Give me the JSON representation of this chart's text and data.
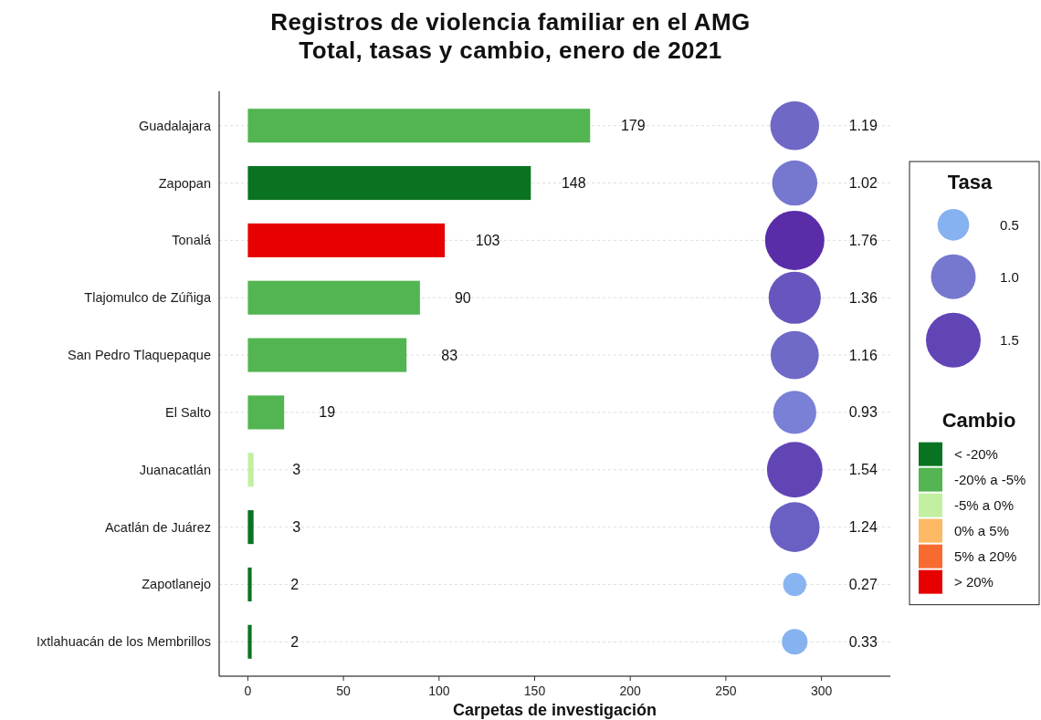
{
  "chart_data": {
    "type": "bar",
    "title": "Registros de violencia familiar en el AMG\nTotal, tasas y cambio, enero de 2021",
    "xlabel": "Carpetas de investigación",
    "orientation": "horizontal",
    "stacked": true,
    "categories": [
      "Guadalajara",
      "Zapopan",
      "Tonalá",
      "Tlajomulco de Zúñiga",
      "San Pedro Tlaquepaque",
      "El Salto",
      "Juanacatlán",
      "Acatlán de Juárez",
      "Zapotlanejo",
      "Ixtlahuacán de los Membrillos"
    ],
    "series": [
      {
        "name": "< -20%",
        "color": "#0a7321",
        "values": [
          null,
          148,
          null,
          null,
          null,
          null,
          null,
          3,
          2,
          2
        ],
        "value_labels": [
          null,
          "148",
          null,
          null,
          null,
          null,
          null,
          "3",
          "2",
          "2"
        ]
      },
      {
        "name": "-20% a -5%",
        "color": "#52b552",
        "values": [
          179,
          null,
          null,
          90,
          83,
          19,
          null,
          null,
          null,
          null
        ],
        "value_labels": [
          "179",
          null,
          null,
          "90",
          "83",
          "19",
          null,
          null,
          null,
          null
        ]
      },
      {
        "name": "-5% a 0%",
        "color": "#c2f0a0",
        "values": [
          null,
          null,
          null,
          null,
          null,
          null,
          3,
          null,
          null,
          null
        ],
        "value_labels": [
          null,
          null,
          null,
          null,
          null,
          null,
          "3",
          null,
          null,
          null
        ]
      },
      {
        "name": "0% a 5%",
        "color": "#fdb863",
        "values": [
          null,
          null,
          null,
          null,
          null,
          null,
          null,
          null,
          null,
          null
        ]
      },
      {
        "name": "5% a 20%",
        "color": "#f76b31",
        "values": [
          null,
          null,
          null,
          null,
          null,
          null,
          null,
          null,
          null,
          null
        ]
      },
      {
        "name": "> 20%",
        "color": "#e60000",
        "values": [
          null,
          null,
          103,
          null,
          null,
          null,
          null,
          null,
          null,
          null
        ],
        "value_labels": [
          null,
          null,
          "103",
          null,
          null,
          null,
          null,
          null,
          null,
          null
        ]
      },
      {
        "type": "bubble",
        "values": [
          286,
          286,
          286,
          286,
          286,
          286,
          286,
          286,
          286,
          286
        ],
        "sizes": [
          1.19,
          1.02,
          1.76,
          1.36,
          1.16,
          0.93,
          1.54,
          1.24,
          0.27,
          0.33
        ],
        "colors": [
          "#7068c6",
          "#7677cf",
          "#5a2ca8",
          "#6856be",
          "#6f69c7",
          "#7a80d6",
          "#6245b5",
          "#6a5fc2",
          "#88b5f2",
          "#86b2f0"
        ],
        "value_labels": [
          "1.19",
          "1.02",
          "1.76",
          "1.36",
          "1.16",
          "0.93",
          "1.54",
          "1.24",
          "0.27",
          "0.33"
        ]
      }
    ],
    "size_legend": [
      0.5,
      {
        "value": 1,
        "label": "1.0"
      },
      1.5
    ],
    "annotations": [
      "Tasa"
    ],
    "legend_title": "Cambio",
    "legend": "right",
    "grid": "y",
    "xlim": [
      -15,
      336
    ],
    "xticks": [
      0,
      50,
      100,
      150,
      200,
      250,
      300
    ]
  }
}
